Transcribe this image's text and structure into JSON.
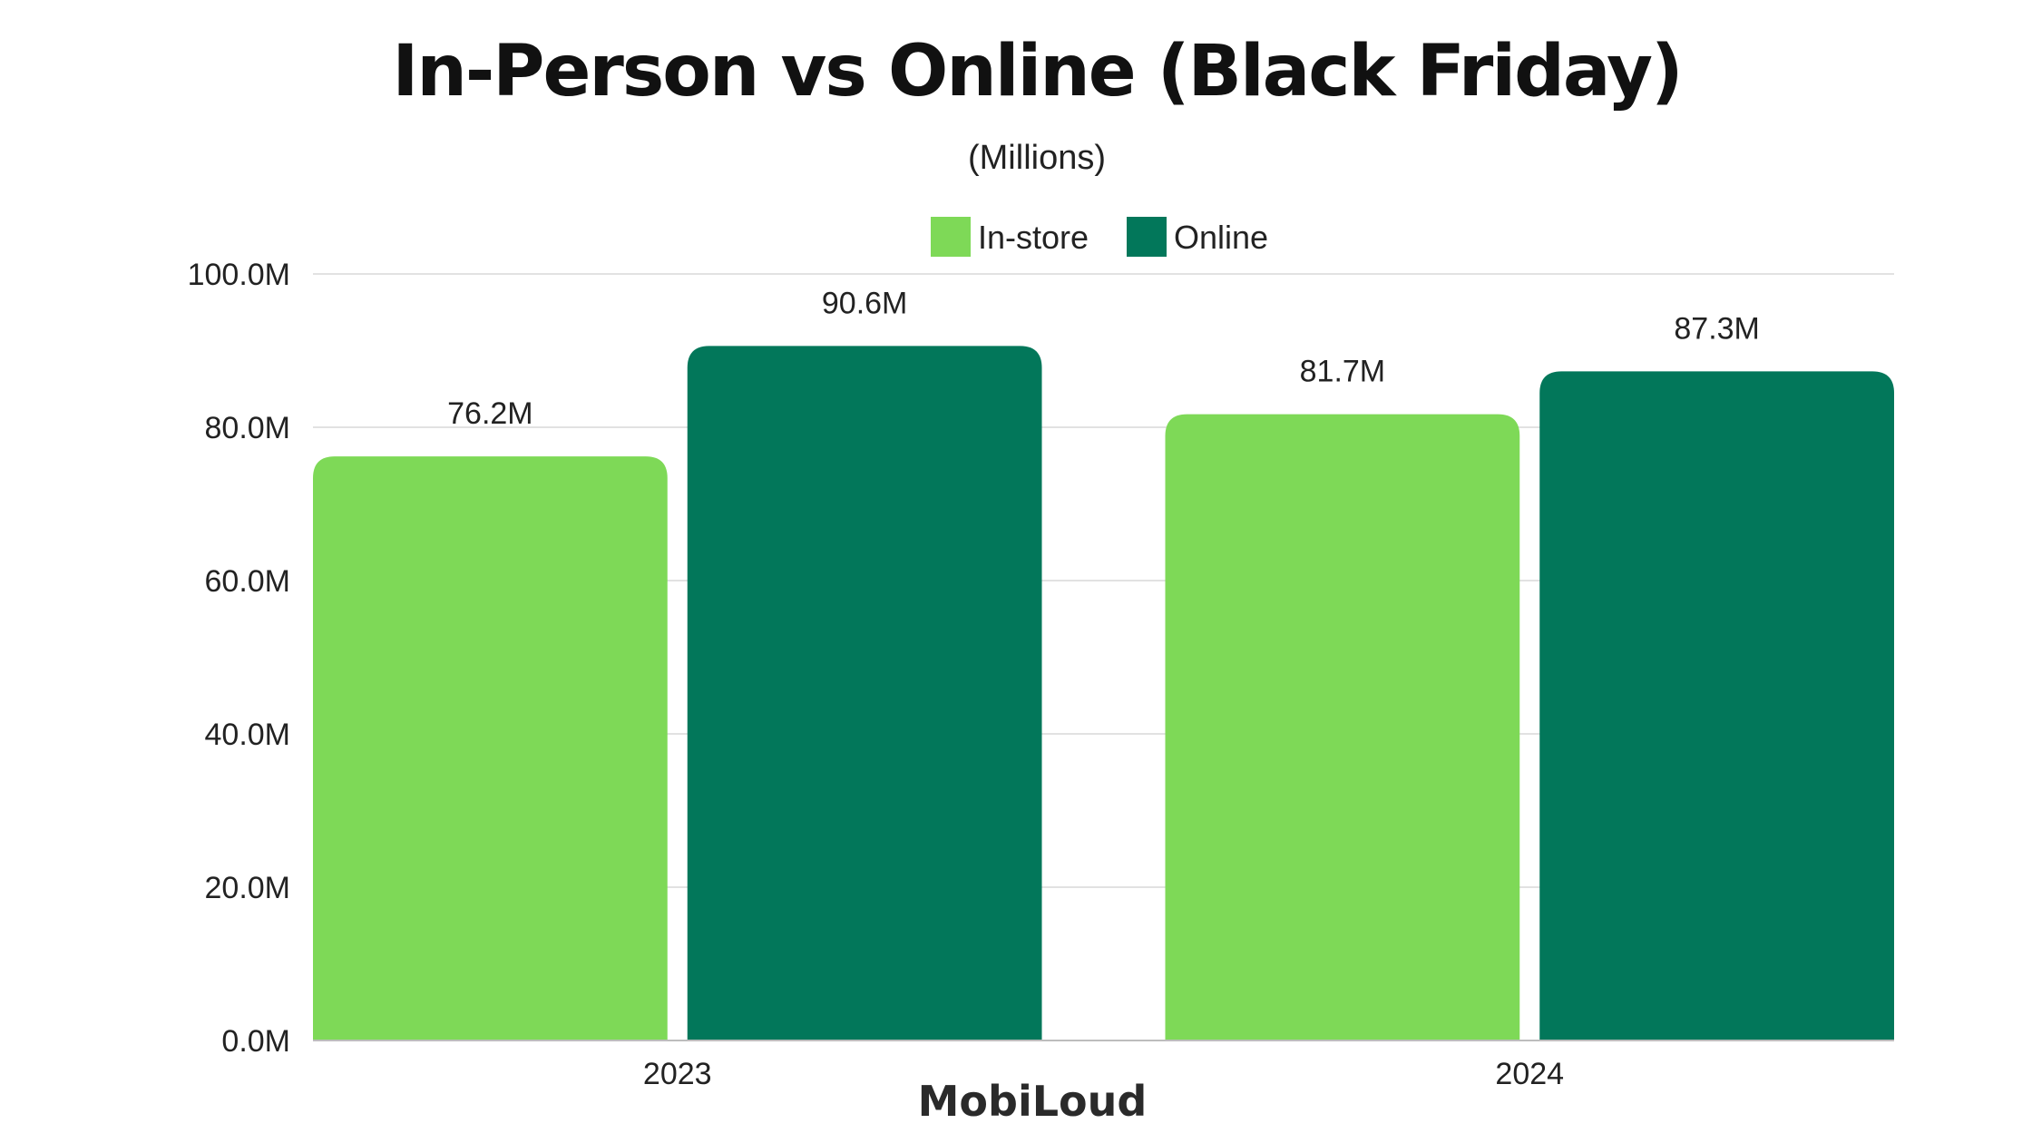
{
  "brand": "MobiLoud",
  "colors": {
    "in_store": "#7ed957",
    "online": "#02775a"
  },
  "chart_data": {
    "type": "bar",
    "title": "In-Person vs Online (Black Friday)",
    "subtitle": "(Millions)",
    "categories": [
      "2023",
      "2024"
    ],
    "series": [
      {
        "name": "In-store",
        "values": [
          76.2,
          81.7
        ],
        "labels": [
          "76.2M",
          "81.7M"
        ]
      },
      {
        "name": "Online",
        "values": [
          90.6,
          87.3
        ],
        "labels": [
          "90.6M",
          "87.3M"
        ]
      }
    ],
    "ylim": [
      0,
      100
    ],
    "yticks": [
      0,
      20,
      40,
      60,
      80,
      100
    ],
    "ytick_labels": [
      "0.0M",
      "20.0M",
      "40.0M",
      "60.0M",
      "80.0M",
      "100.0M"
    ],
    "grid": true,
    "legend_position": "top-center"
  }
}
